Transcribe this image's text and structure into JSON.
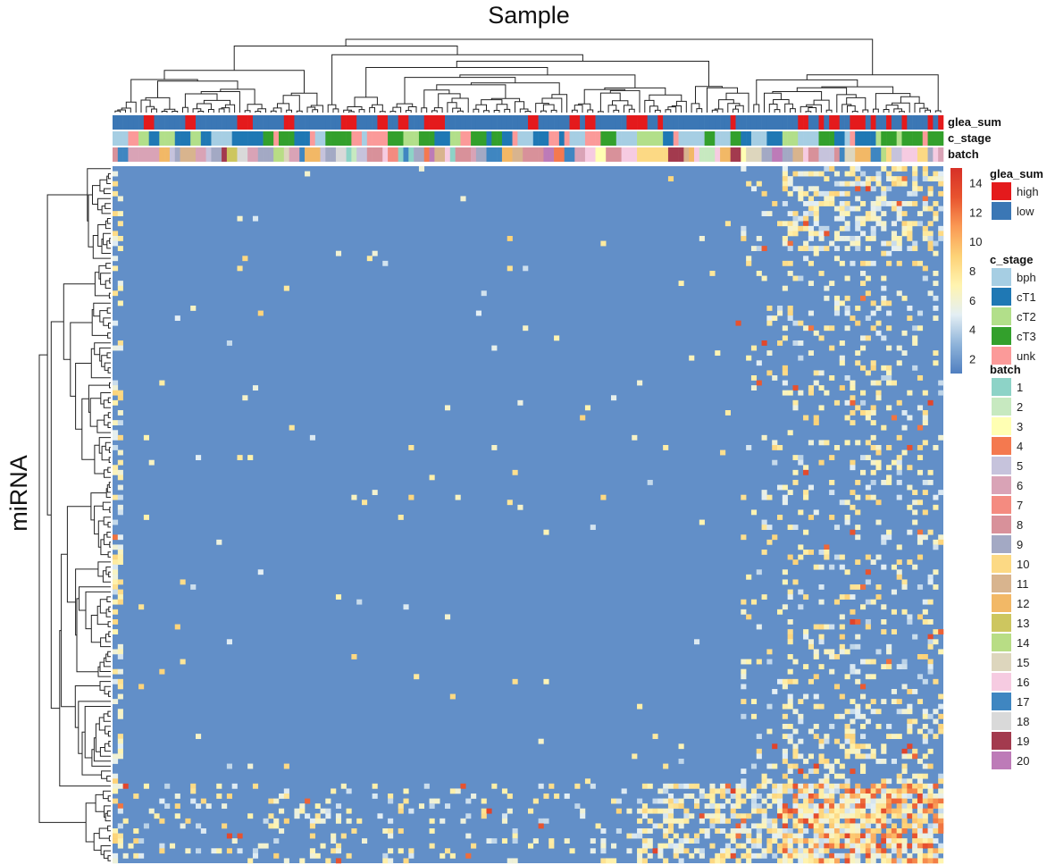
{
  "chart_data": {
    "type": "heatmap",
    "title": "",
    "xlabel": "Sample",
    "ylabel": "miRNA",
    "n_samples": 160,
    "n_mirnas": 140,
    "colorbar": {
      "min": 1,
      "max": 15,
      "ticks": [
        2,
        4,
        6,
        8,
        10,
        12,
        14
      ]
    },
    "color_scale": [
      "#4f7fc0",
      "#8fb4da",
      "#e4eff4",
      "#fff4b0",
      "#fdd277",
      "#fa9a55",
      "#e8542f",
      "#d73027"
    ],
    "annotations": [
      {
        "name": "glea_sum",
        "label": "glea_sum",
        "legend": [
          {
            "label": "high",
            "color": "#e41a1c"
          },
          {
            "label": "low",
            "color": "#3b77b5"
          }
        ]
      },
      {
        "name": "c_stage",
        "label": "c_stage",
        "legend": [
          {
            "label": "bph",
            "color": "#a6cee3"
          },
          {
            "label": "cT1",
            "color": "#1f78b4"
          },
          {
            "label": "cT2",
            "color": "#b2df8a"
          },
          {
            "label": "cT3",
            "color": "#33a02c"
          },
          {
            "label": "unk",
            "color": "#fb9a99"
          }
        ]
      },
      {
        "name": "batch",
        "label": "batch",
        "legend": [
          {
            "label": "1",
            "color": "#8dd3c7"
          },
          {
            "label": "2",
            "color": "#c7e9c0"
          },
          {
            "label": "3",
            "color": "#ffffb3"
          },
          {
            "label": "4",
            "color": "#f4794f"
          },
          {
            "label": "5",
            "color": "#c6c3dc"
          },
          {
            "label": "6",
            "color": "#d9a3b6"
          },
          {
            "label": "7",
            "color": "#f48b80"
          },
          {
            "label": "8",
            "color": "#d8919a"
          },
          {
            "label": "9",
            "color": "#a3a9c4"
          },
          {
            "label": "10",
            "color": "#fcd984"
          },
          {
            "label": "11",
            "color": "#d8b48e"
          },
          {
            "label": "12",
            "color": "#f2b866"
          },
          {
            "label": "13",
            "color": "#cdc65f"
          },
          {
            "label": "14",
            "color": "#b8dd85"
          },
          {
            "label": "15",
            "color": "#ddd6bd"
          },
          {
            "label": "16",
            "color": "#f6cbe1"
          },
          {
            "label": "17",
            "color": "#3f86c1"
          },
          {
            "label": "18",
            "color": "#d9d9d9"
          },
          {
            "label": "19",
            "color": "#a33a4e"
          },
          {
            "label": "20",
            "color": "#bd7bb8"
          }
        ]
      }
    ],
    "legend_placement": "right",
    "grid": false
  }
}
